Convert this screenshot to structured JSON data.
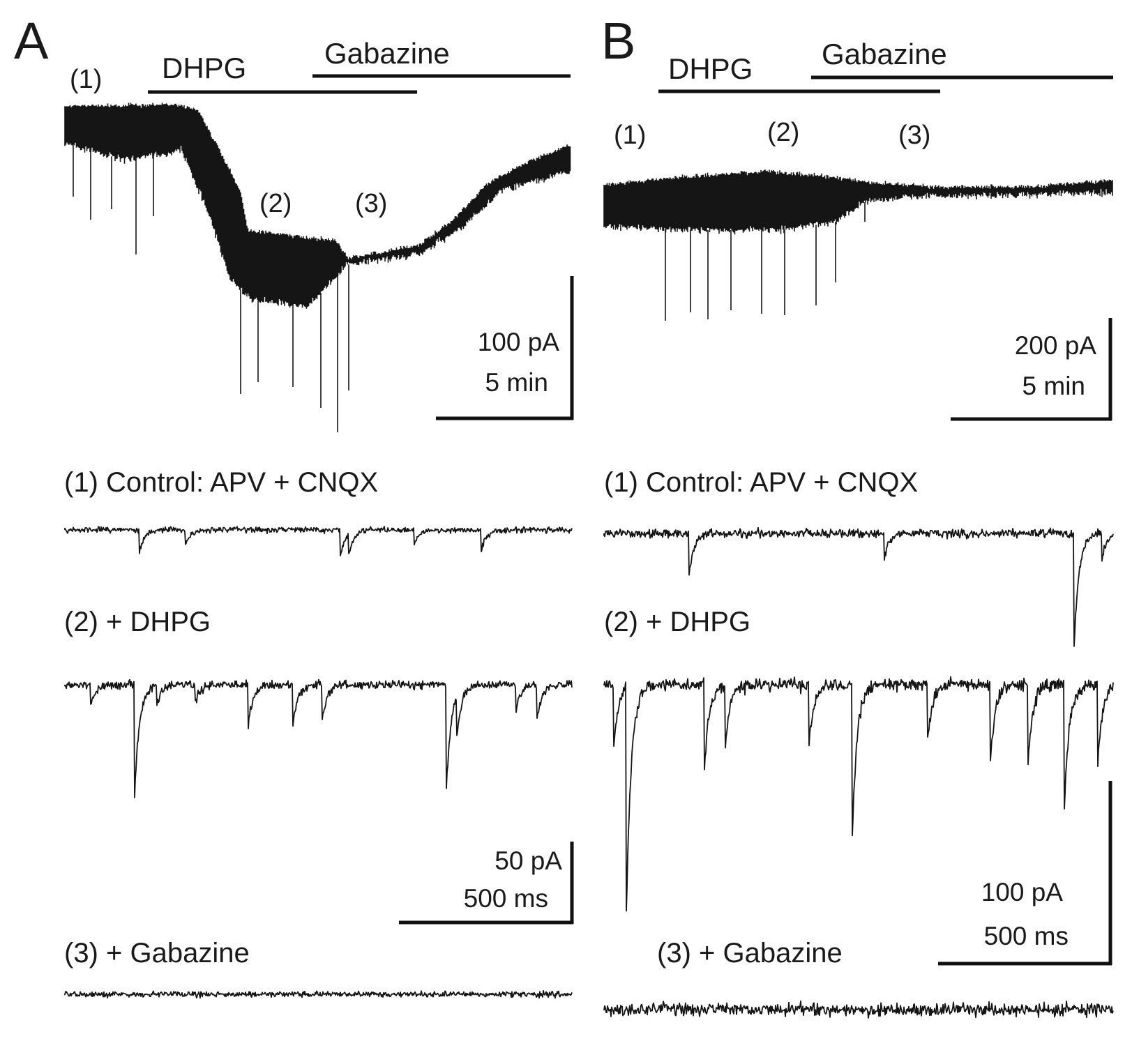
{
  "panels": {
    "A": {
      "letter": "A",
      "drug1": "DHPG",
      "drug2": "Gabazine",
      "markers": [
        "(1)",
        "(2)",
        "(3)"
      ],
      "scale_amp": "100 pA",
      "scale_time": "5 min",
      "traces": [
        {
          "label": "(1) Control: APV + CNQX"
        },
        {
          "label": "(2) + DHPG"
        },
        {
          "label": "(3) + Gabazine"
        }
      ],
      "trace_scale_amp": "50 pA",
      "trace_scale_time": "500 ms"
    },
    "B": {
      "letter": "B",
      "drug1": "DHPG",
      "drug2": "Gabazine",
      "markers": [
        "(1)",
        "(2)",
        "(3)"
      ],
      "scale_amp": "200 pA",
      "scale_time": "5 min",
      "traces": [
        {
          "label": "(1) Control: APV + CNQX"
        },
        {
          "label": "(2) + DHPG"
        },
        {
          "label": "(3) + Gabazine"
        }
      ],
      "trace_scale_amp": "100 pA",
      "trace_scale_time": "500 ms"
    }
  },
  "colors": {
    "trace": "#151515",
    "background": "#ffffff"
  }
}
